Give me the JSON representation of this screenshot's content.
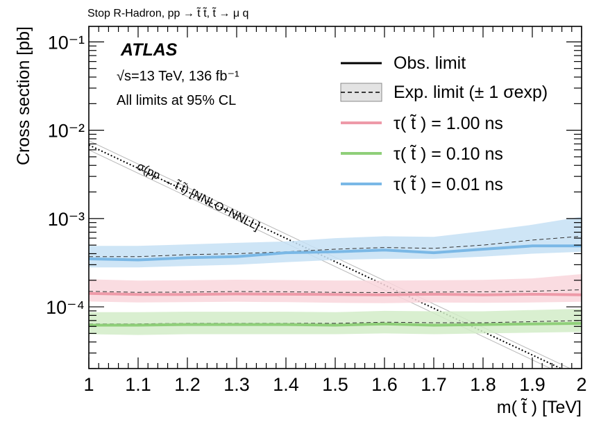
{
  "header": {
    "process": "Stop R-Hadron, pp → t̃ t̃,  t̃ → μ q"
  },
  "experiment": {
    "name": "ATLAS",
    "energy": "√s=13 TeV, 136 fb⁻¹",
    "cl_note": "All limits at 95% CL"
  },
  "legend": {
    "obs": "Obs. limit",
    "exp": "Exp. limit (± 1 σexp)",
    "tau1": "τ( t̃ ) = 1.00 ns",
    "tau2": "τ( t̃ ) = 0.10 ns",
    "tau3": "τ( t̃ ) = 0.01 ns"
  },
  "theory_label": "σ(pp → t̃ t̃) [NNLO+NNLL]",
  "chart_data": {
    "type": "line",
    "xlabel": "m( t̃ ) [TeV]",
    "ylabel": "Cross section [pb]",
    "xlim": [
      1.0,
      2.0
    ],
    "ylim": [
      2e-05,
      0.15
    ],
    "yscale": "log",
    "x_ticks": [
      "1",
      "1.1",
      "1.2",
      "1.3",
      "1.4",
      "1.5",
      "1.6",
      "1.7",
      "1.8",
      "1.9",
      "2"
    ],
    "y_ticks": [
      "10⁻⁴",
      "10⁻³",
      "10⁻²",
      "10⁻¹"
    ],
    "x": [
      1.0,
      1.1,
      1.2,
      1.3,
      1.4,
      1.5,
      1.6,
      1.7,
      1.8,
      1.9,
      2.0
    ],
    "series": [
      {
        "name": "τ( t̃ ) = 0.01 ns",
        "color": "#7ab8e6",
        "band_color": "#c5e0f5",
        "obs": [
          0.00035,
          0.00034,
          0.00036,
          0.00037,
          0.00041,
          0.00042,
          0.00044,
          0.00041,
          0.00045,
          0.00049,
          0.00049
        ],
        "exp": [
          0.00037,
          0.00037,
          0.00039,
          0.0004,
          0.00042,
          0.00045,
          0.00047,
          0.00046,
          0.0005,
          0.00057,
          0.00063
        ],
        "exp_lo": [
          0.00028,
          0.00028,
          0.00029,
          0.0003,
          0.00032,
          0.00034,
          0.00035,
          0.00035,
          0.00037,
          0.0004,
          0.00042
        ],
        "exp_hi": [
          0.00049,
          0.00049,
          0.00051,
          0.00053,
          0.00055,
          0.0006,
          0.00063,
          0.00062,
          0.00072,
          0.00085,
          0.00105
        ]
      },
      {
        "name": "τ( t̃ ) = 1.00 ns",
        "color": "#ee9aa8",
        "band_color": "#f9d6dc",
        "obs": [
          0.000142,
          0.000138,
          0.000138,
          0.00014,
          0.000139,
          0.000138,
          0.000137,
          0.000139,
          0.000137,
          0.000139,
          0.000137
        ],
        "exp": [
          0.00015,
          0.000146,
          0.000147,
          0.000149,
          0.000148,
          0.000146,
          0.000145,
          0.000147,
          0.000148,
          0.00015,
          0.000156
        ],
        "exp_lo": [
          0.000115,
          0.000112,
          0.000113,
          0.000114,
          0.000113,
          0.000111,
          0.00011,
          0.000112,
          0.000111,
          0.000112,
          0.000114
        ],
        "exp_hi": [
          0.000205,
          0.000198,
          0.0002,
          0.000203,
          0.000201,
          0.000199,
          0.000198,
          0.0002,
          0.000202,
          0.00021,
          0.000235
        ]
      },
      {
        "name": "τ( t̃ ) = 0.10 ns",
        "color": "#8fcf79",
        "band_color": "#d2ecc8",
        "obs": [
          6.2e-05,
          6.2e-05,
          6.3e-05,
          6.3e-05,
          6.3e-05,
          6.2e-05,
          6.4e-05,
          6.2e-05,
          6.3e-05,
          6.4e-05,
          6.5e-05
        ],
        "exp": [
          6.4e-05,
          6.4e-05,
          6.5e-05,
          6.5e-05,
          6.5e-05,
          6.5e-05,
          6.7e-05,
          6.6e-05,
          6.6e-05,
          6.8e-05,
          7e-05
        ],
        "exp_lo": [
          4.9e-05,
          4.8e-05,
          4.9e-05,
          4.9e-05,
          4.9e-05,
          4.9e-05,
          5e-05,
          4.9e-05,
          5e-05,
          5.1e-05,
          5.2e-05
        ],
        "exp_hi": [
          8.7e-05,
          8.7e-05,
          8.8e-05,
          8.8e-05,
          8.8e-05,
          8.7e-05,
          9e-05,
          8.9e-05,
          8.9e-05,
          9.2e-05,
          9.5e-05
        ]
      }
    ],
    "theory": {
      "x": [
        1.0,
        2.0
      ],
      "y": [
        0.0068,
        1.55e-05
      ],
      "unc_frac": 0.12
    }
  }
}
